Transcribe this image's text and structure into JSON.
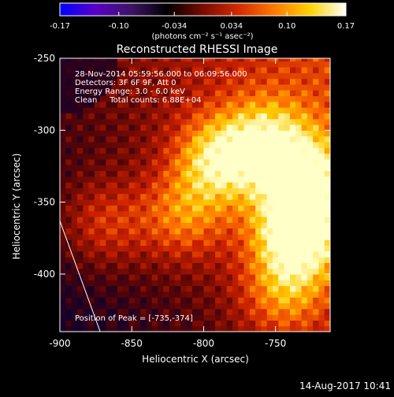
{
  "colorbar": {
    "ticks": [
      "-0.17",
      "-0.10",
      "-0.034",
      "0.034",
      "0.10",
      "0.17"
    ],
    "tick_values": [
      -0.17,
      -0.1,
      -0.034,
      0.034,
      0.1,
      0.17
    ],
    "range": [
      -0.17,
      0.17
    ],
    "units": "(photons cm⁻² s⁻¹ asec⁻²)",
    "colors": [
      "#0000ff",
      "#5a00c8",
      "#3c1464",
      "#000000",
      "#7a0a00",
      "#d42a00",
      "#ff7a00",
      "#ffd200",
      "#ffffff"
    ]
  },
  "chart_data": {
    "type": "heatmap",
    "title": "Reconstructed RHESSI Image",
    "xlabel": "Heliocentric X (arcsec)",
    "ylabel": "Heliocentric Y (arcsec)",
    "xlim": [
      -900,
      -712
    ],
    "ylim": [
      -440,
      -250
    ],
    "x_ticks": [
      -900,
      -850,
      -800,
      -750
    ],
    "y_ticks": [
      -250,
      -300,
      -350,
      -400
    ],
    "x_tick_labels": [
      "-900",
      "-850",
      "-800",
      "-750"
    ],
    "y_tick_labels": [
      "-250",
      "-300",
      "-350",
      "-400"
    ],
    "info_lines": [
      "28-Nov-2014 05:59:56.000 to 06:09:56.000",
      "Detectors: 3F 6F 9F, Att 0",
      "Energy Range: 3.0 - 6.0 keV",
      "Clean     Total counts: 6.88E+04"
    ],
    "peak_label": "Position of Peak = [-735,-374]",
    "peak": [
      -735,
      -374
    ],
    "sources": [
      {
        "x": -735,
        "y": -374,
        "amp": 1.0
      },
      {
        "x": -730,
        "y": -335,
        "amp": 0.85
      },
      {
        "x": -790,
        "y": -320,
        "amp": 0.8
      },
      {
        "x": -755,
        "y": -305,
        "amp": 0.6
      },
      {
        "x": -815,
        "y": -360,
        "amp": 0.55
      },
      {
        "x": -870,
        "y": -365,
        "amp": 0.45
      },
      {
        "x": -745,
        "y": -415,
        "amp": 0.5
      }
    ],
    "limb_line": {
      "x": [
        -900,
        -872
      ],
      "y": [
        -363,
        -440
      ]
    }
  },
  "footer": {
    "timestamp": "14-Aug-2017 10:41"
  }
}
